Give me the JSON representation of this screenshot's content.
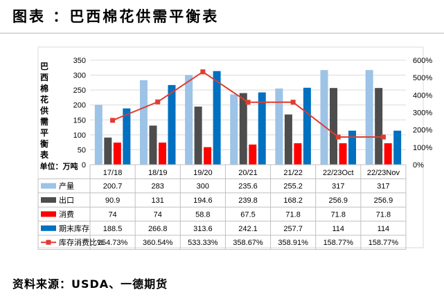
{
  "header": {
    "title": "图表  ：巴西棉花供需平衡表"
  },
  "footer": {
    "source": "资料来源：USDA、一德期货"
  },
  "chart_data": {
    "type": "bar",
    "title": "图表  ：巴西棉花供需平衡表",
    "ylabel": "巴西棉花供需平衡表",
    "unit_label": "单位：万吨",
    "categories": [
      "17/18",
      "18/19",
      "19/20",
      "20/21",
      "21/22",
      "22/23Oct",
      "22/23Nov"
    ],
    "ylim": [
      0,
      350
    ],
    "yticks": [
      0,
      50,
      100,
      150,
      200,
      250,
      300,
      350
    ],
    "y2lim": [
      0,
      600
    ],
    "y2ticks": [
      "0%",
      "100%",
      "200%",
      "300%",
      "400%",
      "500%",
      "600%"
    ],
    "y2tick_values": [
      0,
      100,
      200,
      300,
      400,
      500,
      600
    ],
    "series": [
      {
        "name": "产量",
        "kind": "bar",
        "color": "#9dc3e6",
        "values": [
          200.7,
          283,
          300,
          235.6,
          255.2,
          317,
          317
        ],
        "labels": [
          "200.7",
          "283",
          "300",
          "235.6",
          "255.2",
          "317",
          "317"
        ]
      },
      {
        "name": "出口",
        "kind": "bar",
        "color": "#4d4d4d",
        "values": [
          90.9,
          131,
          194.6,
          239.8,
          168.2,
          256.9,
          256.9
        ],
        "labels": [
          "90.9",
          "131",
          "194.6",
          "239.8",
          "168.2",
          "256.9",
          "256.9"
        ]
      },
      {
        "name": "消费",
        "kind": "bar",
        "color": "#ff0000",
        "values": [
          74,
          74,
          58.8,
          67.5,
          71.8,
          71.8,
          71.8
        ],
        "labels": [
          "74",
          "74",
          "58.8",
          "67.5",
          "71.8",
          "71.8",
          "71.8"
        ]
      },
      {
        "name": "期末库存",
        "kind": "bar",
        "color": "#0070c0",
        "values": [
          188.5,
          266.8,
          313.6,
          242.1,
          257.7,
          114,
          114
        ],
        "labels": [
          "188.5",
          "266.8",
          "313.6",
          "242.1",
          "257.7",
          "114",
          "114"
        ]
      },
      {
        "name": "库存消费比%",
        "kind": "line",
        "axis": "right",
        "color": "#e03c31",
        "values": [
          254.73,
          360.54,
          533.33,
          358.67,
          358.91,
          158.77,
          158.77
        ],
        "labels": [
          "254.73%",
          "360.54%",
          "533.33%",
          "358.67%",
          "358.91%",
          "158.77%",
          "158.77%"
        ]
      }
    ]
  }
}
